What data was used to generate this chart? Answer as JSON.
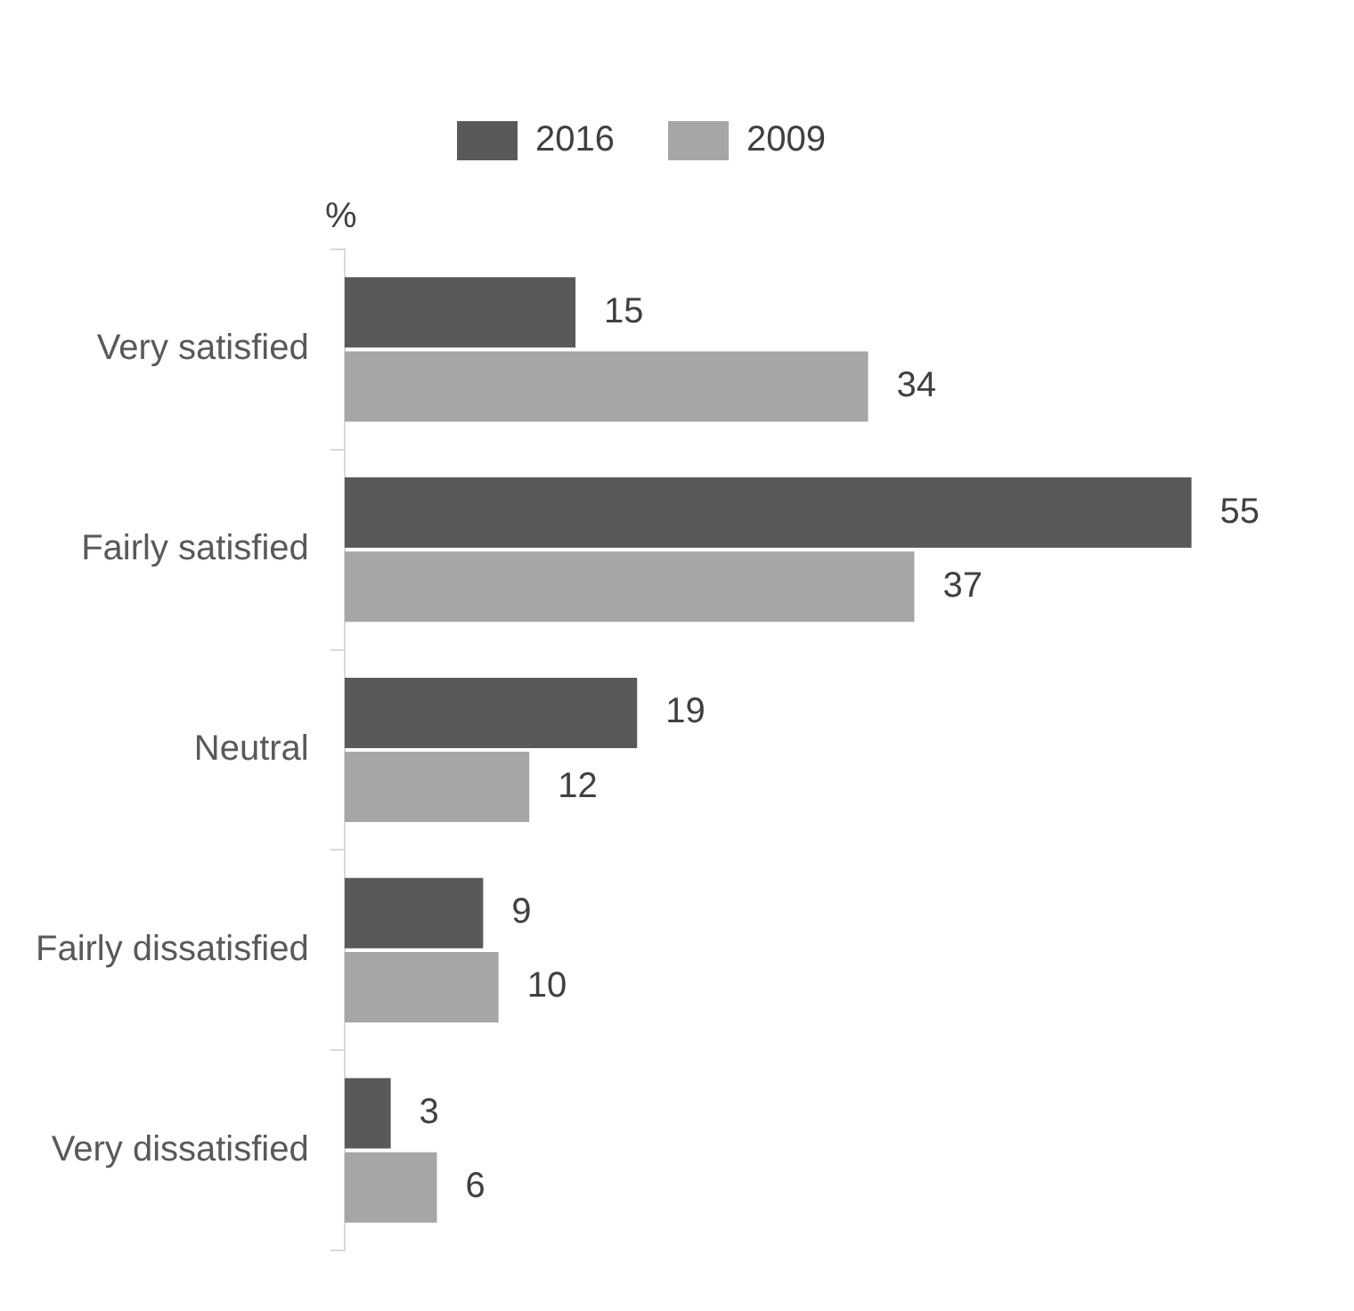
{
  "chart_data": {
    "type": "bar",
    "orientation": "horizontal",
    "categories": [
      "Very satisfied",
      "Fairly satisfied",
      "Neutral",
      "Fairly dissatisfied",
      "Very dissatisfied"
    ],
    "series": [
      {
        "name": "2016",
        "color": "#595959",
        "values": [
          15,
          55,
          19,
          9,
          3
        ]
      },
      {
        "name": "2009",
        "color": "#a6a6a6",
        "values": [
          34,
          37,
          12,
          10,
          6
        ]
      }
    ],
    "data_labels": true,
    "legend": "top",
    "annotations": [
      "%"
    ]
  }
}
